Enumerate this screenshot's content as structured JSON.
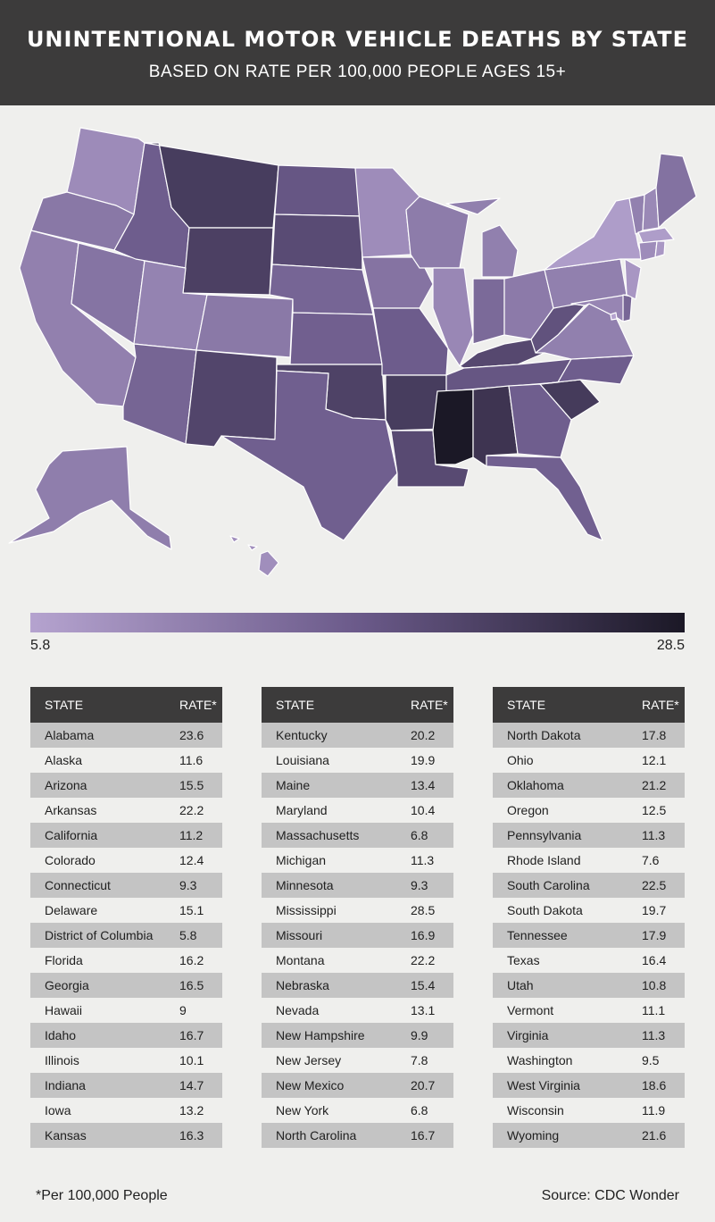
{
  "header": {
    "title": "UNINTENTIONAL MOTOR VEHICLE DEATHS BY STATE",
    "subtitle": "BASED ON RATE PER 100,000 PEOPLE AGES 15+"
  },
  "colors": {
    "header_bg": "#3c3b3b",
    "scale_low": "#b5a3cf",
    "scale_mid": "#6b5a8a",
    "scale_high": "#1b1826"
  },
  "legend": {
    "min": 5.8,
    "max": 28.5,
    "min_label": "5.8",
    "max_label": "28.5"
  },
  "table": {
    "state_header": "STATE",
    "rate_header": "RATE*"
  },
  "states": [
    {
      "name": "Alabama",
      "rate": "23.6"
    },
    {
      "name": "Alaska",
      "rate": "11.6"
    },
    {
      "name": "Arizona",
      "rate": "15.5"
    },
    {
      "name": "Arkansas",
      "rate": "22.2"
    },
    {
      "name": "California",
      "rate": "11.2"
    },
    {
      "name": "Colorado",
      "rate": "12.4"
    },
    {
      "name": "Connecticut",
      "rate": "9.3"
    },
    {
      "name": "Delaware",
      "rate": "15.1"
    },
    {
      "name": "District of Columbia",
      "rate": "5.8"
    },
    {
      "name": "Florida",
      "rate": "16.2"
    },
    {
      "name": "Georgia",
      "rate": "16.5"
    },
    {
      "name": "Hawaii",
      "rate": "9"
    },
    {
      "name": "Idaho",
      "rate": "16.7"
    },
    {
      "name": "Illinois",
      "rate": "10.1"
    },
    {
      "name": "Indiana",
      "rate": "14.7"
    },
    {
      "name": "Iowa",
      "rate": "13.2"
    },
    {
      "name": "Kansas",
      "rate": "16.3"
    },
    {
      "name": "Kentucky",
      "rate": "20.2"
    },
    {
      "name": "Louisiana",
      "rate": "19.9"
    },
    {
      "name": "Maine",
      "rate": "13.4"
    },
    {
      "name": "Maryland",
      "rate": "10.4"
    },
    {
      "name": "Massachusetts",
      "rate": "6.8"
    },
    {
      "name": "Michigan",
      "rate": "11.3"
    },
    {
      "name": "Minnesota",
      "rate": "9.3"
    },
    {
      "name": "Mississippi",
      "rate": "28.5"
    },
    {
      "name": "Missouri",
      "rate": "16.9"
    },
    {
      "name": "Montana",
      "rate": "22.2"
    },
    {
      "name": "Nebraska",
      "rate": "15.4"
    },
    {
      "name": "Nevada",
      "rate": "13.1"
    },
    {
      "name": "New Hampshire",
      "rate": "9.9"
    },
    {
      "name": "New Jersey",
      "rate": "7.8"
    },
    {
      "name": "New Mexico",
      "rate": "20.7"
    },
    {
      "name": "New York",
      "rate": "6.8"
    },
    {
      "name": "North Carolina",
      "rate": "16.7"
    },
    {
      "name": "North Dakota",
      "rate": "17.8"
    },
    {
      "name": "Ohio",
      "rate": "12.1"
    },
    {
      "name": "Oklahoma",
      "rate": "21.2"
    },
    {
      "name": "Oregon",
      "rate": "12.5"
    },
    {
      "name": "Pennsylvania",
      "rate": "11.3"
    },
    {
      "name": "Rhode Island",
      "rate": "7.6"
    },
    {
      "name": "South Carolina",
      "rate": "22.5"
    },
    {
      "name": "South Dakota",
      "rate": "19.7"
    },
    {
      "name": "Tennessee",
      "rate": "17.9"
    },
    {
      "name": "Texas",
      "rate": "16.4"
    },
    {
      "name": "Utah",
      "rate": "10.8"
    },
    {
      "name": "Vermont",
      "rate": "11.1"
    },
    {
      "name": "Virginia",
      "rate": "11.3"
    },
    {
      "name": "Washington",
      "rate": "9.5"
    },
    {
      "name": "West Virginia",
      "rate": "18.6"
    },
    {
      "name": "Wisconsin",
      "rate": "11.9"
    },
    {
      "name": "Wyoming",
      "rate": "21.6"
    }
  ],
  "footnote": "*Per 100,000 People",
  "source": "Source: CDC Wonder"
}
